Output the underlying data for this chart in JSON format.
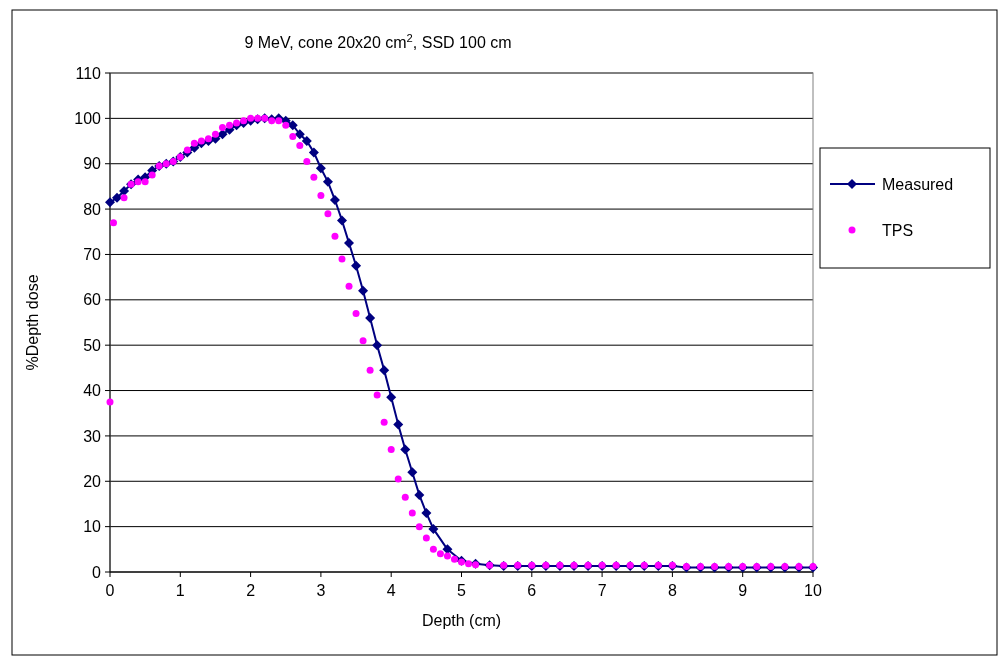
{
  "chart_data": {
    "type": "line",
    "title": "9 MeV, cone 20x20 cm$^{2}$, SSD 100 cm",
    "xlabel": "Depth (cm)",
    "ylabel": "%Depth dose",
    "xlim": [
      0,
      10
    ],
    "xticks": [
      0,
      1,
      2,
      3,
      4,
      5,
      6,
      7,
      8,
      9,
      10
    ],
    "ylim": [
      0,
      110
    ],
    "yticks": [
      0,
      10,
      20,
      30,
      40,
      50,
      60,
      70,
      80,
      90,
      100,
      110
    ],
    "grid": "y",
    "legend": "right",
    "series": [
      {
        "name": "Measured",
        "marker": "diamond",
        "color": "#000080",
        "x": [
          0,
          0.1,
          0.2,
          0.3,
          0.4,
          0.5,
          0.6,
          0.7,
          0.8,
          0.9,
          1,
          1.1,
          1.2,
          1.3,
          1.4,
          1.5,
          1.6,
          1.7,
          1.8,
          1.9,
          2,
          2.1,
          2.2,
          2.3,
          2.4,
          2.5,
          2.6,
          2.7,
          2.8,
          2.9,
          3,
          3.1,
          3.2,
          3.3,
          3.4,
          3.5,
          3.6,
          3.7,
          3.8,
          3.9,
          4,
          4.1,
          4.2,
          4.3,
          4.4,
          4.5,
          4.6,
          4.8,
          5,
          5.2,
          5.4,
          5.6,
          5.8,
          6,
          6.2,
          6.4,
          6.6,
          6.8,
          7,
          7.2,
          7.4,
          7.6,
          7.8,
          8,
          8.2,
          8.4,
          8.6,
          8.8,
          9,
          9.2,
          9.4,
          9.6,
          9.8,
          10
        ],
        "values": [
          81.5,
          82.5,
          84,
          85.5,
          86.5,
          87,
          88.5,
          89.5,
          90,
          90.5,
          91.5,
          92.5,
          93.5,
          94.5,
          95,
          95.5,
          96.5,
          97.5,
          98.5,
          99,
          99.5,
          99.8,
          100,
          99.8,
          100,
          99.5,
          98.5,
          96.5,
          95,
          92.5,
          89,
          86,
          82,
          77.5,
          72.5,
          67.5,
          62,
          56,
          50,
          44.5,
          38.5,
          32.5,
          27,
          22,
          17,
          13,
          9.5,
          5,
          2.5,
          1.8,
          1.5,
          1.3,
          1.3,
          1.3,
          1.3,
          1.3,
          1.3,
          1.3,
          1.3,
          1.3,
          1.3,
          1.3,
          1.3,
          1.3,
          1,
          1,
          1,
          1,
          1,
          1,
          1,
          1,
          1,
          1
        ]
      },
      {
        "name": "TPS",
        "type": "scatter",
        "marker": "circle",
        "color": "#ff00ff",
        "x": [
          0,
          0.05,
          0.2,
          0.3,
          0.4,
          0.5,
          0.6,
          0.7,
          0.8,
          0.9,
          1,
          1.1,
          1.2,
          1.3,
          1.4,
          1.5,
          1.6,
          1.7,
          1.8,
          1.9,
          2,
          2.1,
          2.2,
          2.3,
          2.4,
          2.5,
          2.6,
          2.7,
          2.8,
          2.9,
          3,
          3.1,
          3.2,
          3.3,
          3.4,
          3.5,
          3.6,
          3.7,
          3.8,
          3.9,
          4,
          4.1,
          4.2,
          4.3,
          4.4,
          4.5,
          4.6,
          4.7,
          4.8,
          4.9,
          5,
          5.1,
          5.2,
          5.4,
          5.6,
          5.8,
          6,
          6.2,
          6.4,
          6.6,
          6.8,
          7,
          7.2,
          7.4,
          7.6,
          7.8,
          8,
          8.2,
          8.4,
          8.6,
          8.8,
          9,
          9.2,
          9.4,
          9.6,
          9.8,
          10
        ],
        "values": [
          37.5,
          77,
          82.5,
          85.5,
          86,
          86,
          87.5,
          89.5,
          90,
          90.5,
          91.5,
          93,
          94.5,
          95,
          95.5,
          96.5,
          98,
          98.5,
          99,
          99.5,
          100,
          100,
          100,
          99.5,
          99.5,
          98.5,
          96,
          94,
          90.5,
          87,
          83,
          79,
          74,
          69,
          63,
          57,
          51,
          44.5,
          39,
          33,
          27,
          20.5,
          16.5,
          13,
          10,
          7.5,
          5,
          4,
          3.5,
          2.8,
          2.2,
          1.8,
          1.6,
          1.5,
          1.5,
          1.5,
          1.5,
          1.5,
          1.5,
          1.5,
          1.5,
          1.5,
          1.5,
          1.5,
          1.5,
          1.5,
          1.5,
          1.2,
          1.2,
          1.2,
          1.2,
          1.2,
          1.2,
          1.2,
          1.2,
          1.2,
          1.2
        ]
      }
    ]
  }
}
